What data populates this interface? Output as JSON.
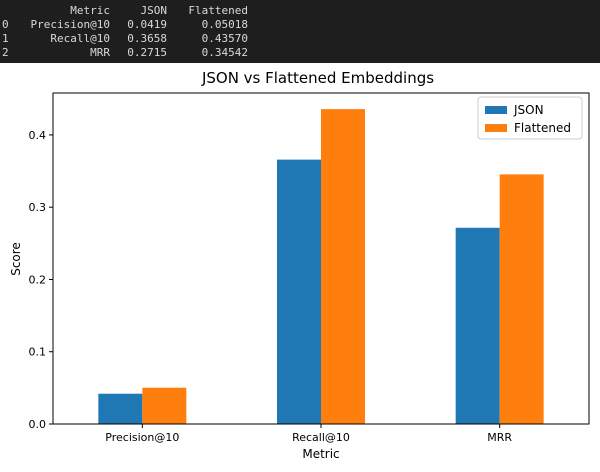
{
  "dataframe": {
    "header": {
      "metric": "Metric",
      "json": "JSON",
      "flattened": "Flattened"
    },
    "rows": [
      {
        "index": "0",
        "metric": "Precision@10",
        "json": "0.0419",
        "flattened": "0.05018"
      },
      {
        "index": "1",
        "metric": "Recall@10",
        "json": "0.3658",
        "flattened": "0.43570"
      },
      {
        "index": "2",
        "metric": "MRR",
        "json": "0.2715",
        "flattened": "0.34542"
      }
    ]
  },
  "chart_data": {
    "type": "bar",
    "title": "JSON vs Flattened Embeddings",
    "xlabel": "Metric",
    "ylabel": "Score",
    "categories": [
      "Precision@10",
      "Recall@10",
      "MRR"
    ],
    "series": [
      {
        "name": "JSON",
        "color": "#1f77b4",
        "values": [
          0.0419,
          0.3658,
          0.2715
        ]
      },
      {
        "name": "Flattened",
        "color": "#ff7f0e",
        "values": [
          0.05018,
          0.4357,
          0.34542
        ]
      }
    ],
    "ylim": [
      0,
      0.458
    ],
    "yticks": [
      0.0,
      0.1,
      0.2,
      0.3,
      0.4
    ],
    "ytick_labels": [
      "0.0",
      "0.1",
      "0.2",
      "0.3",
      "0.4"
    ],
    "legend_position": "top-right",
    "grid": false
  }
}
